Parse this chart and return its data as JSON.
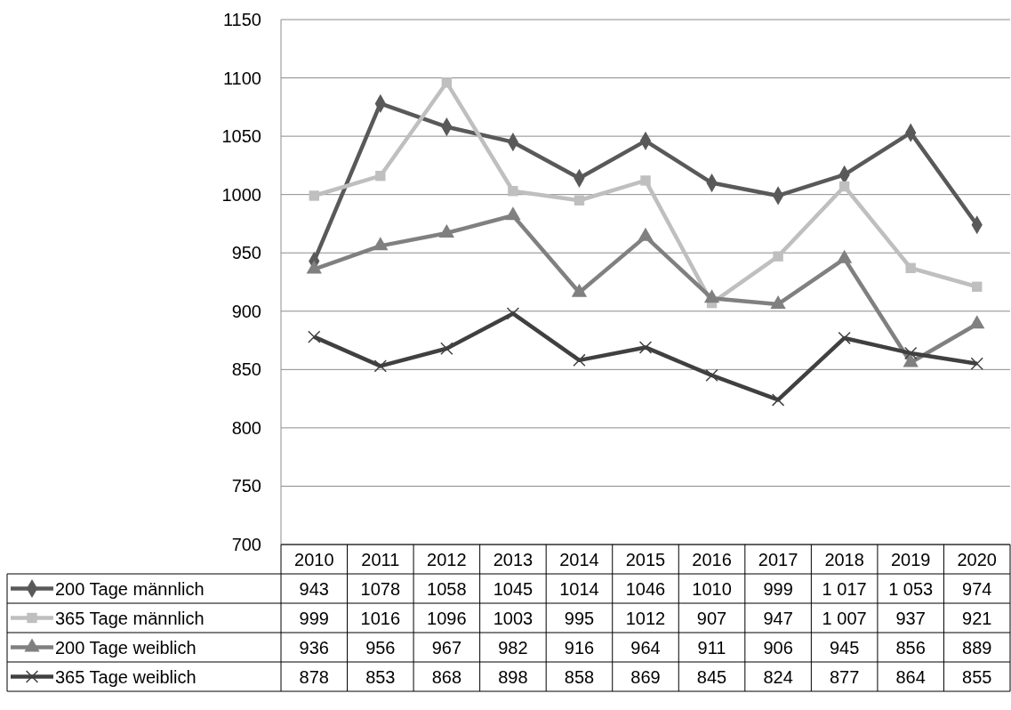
{
  "chart_data": {
    "type": "line",
    "categories": [
      "2010",
      "2011",
      "2012",
      "2013",
      "2014",
      "2015",
      "2016",
      "2017",
      "2018",
      "2019",
      "2020"
    ],
    "series": [
      {
        "name": "200 Tage männlich",
        "color": "#595959",
        "marker": "diamond",
        "values": [
          943,
          1078,
          1058,
          1045,
          1014,
          1046,
          1010,
          999,
          1017,
          1053,
          974
        ],
        "value_labels": [
          "943",
          "1078",
          "1058",
          "1045",
          "1014",
          "1046",
          "1010",
          "999",
          "1 017",
          "1 053",
          "974"
        ]
      },
      {
        "name": "365 Tage männlich",
        "color": "#bfbfbf",
        "marker": "square",
        "values": [
          999,
          1016,
          1096,
          1003,
          995,
          1012,
          907,
          947,
          1007,
          937,
          921
        ],
        "value_labels": [
          "999",
          "1016",
          "1096",
          "1003",
          "995",
          "1012",
          "907",
          "947",
          "1 007",
          "937",
          "921"
        ]
      },
      {
        "name": "200 Tage weiblich",
        "color": "#808080",
        "marker": "triangle",
        "values": [
          936,
          956,
          967,
          982,
          916,
          964,
          911,
          906,
          945,
          856,
          889
        ],
        "value_labels": [
          "936",
          "956",
          "967",
          "982",
          "916",
          "964",
          "911",
          "906",
          "945",
          "856",
          "889"
        ]
      },
      {
        "name": "365 Tage weiblich",
        "color": "#404040",
        "marker": "cross",
        "values": [
          878,
          853,
          868,
          898,
          858,
          869,
          845,
          824,
          877,
          864,
          855
        ],
        "value_labels": [
          "878",
          "853",
          "868",
          "898",
          "858",
          "869",
          "845",
          "824",
          "877",
          "864",
          "855"
        ]
      }
    ],
    "ylim": [
      700,
      1150
    ],
    "yticks": [
      700,
      750,
      800,
      850,
      900,
      950,
      1000,
      1050,
      1100,
      1150
    ],
    "grid": "y",
    "legend": "bottom",
    "line_style": "solid"
  }
}
